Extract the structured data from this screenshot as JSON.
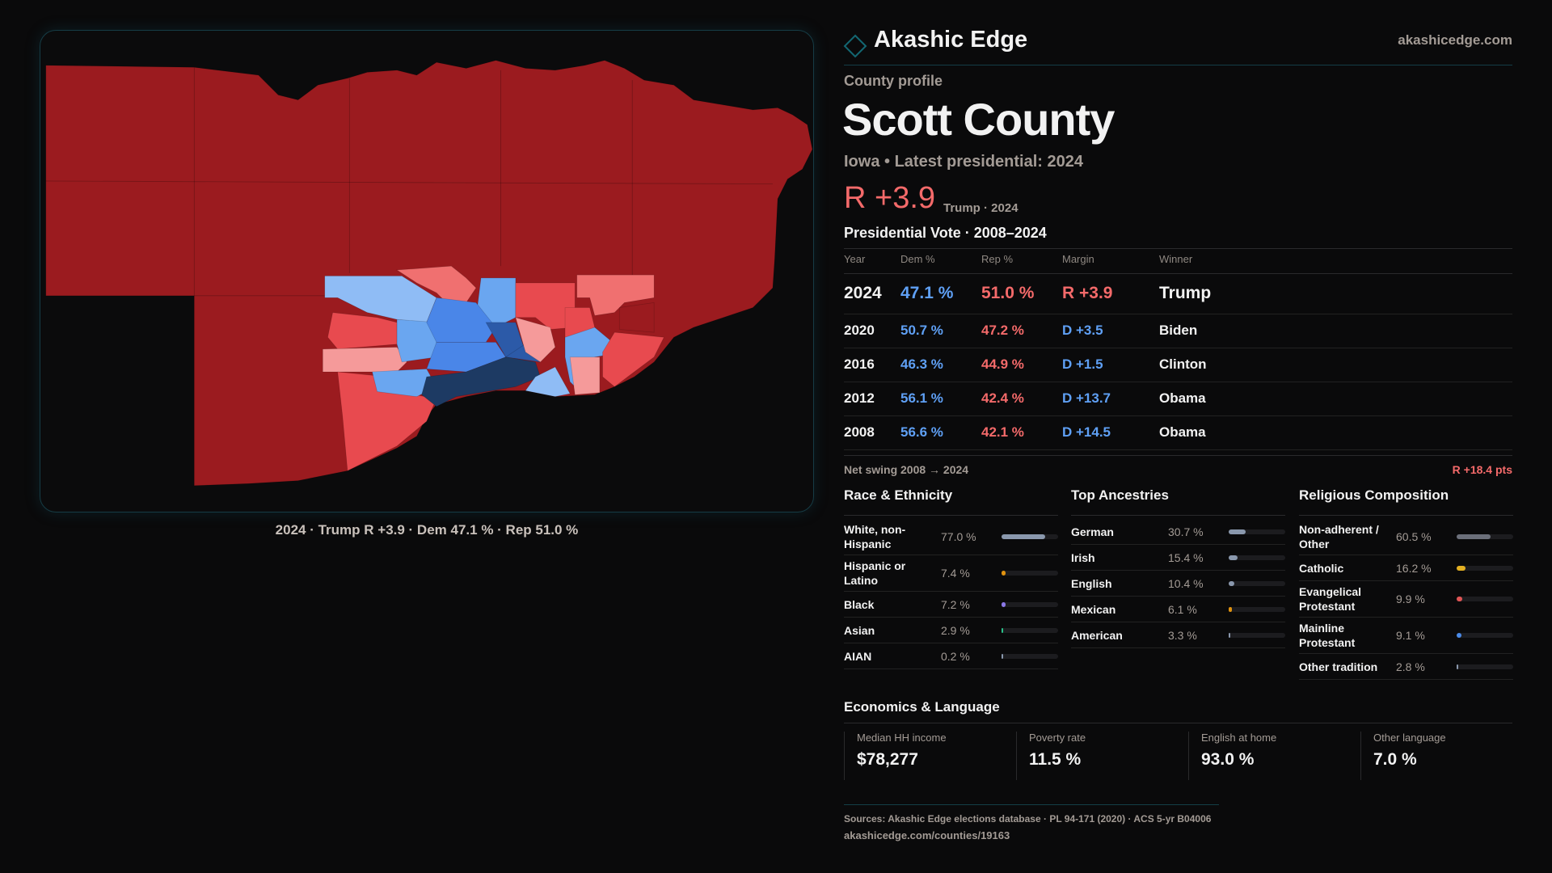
{
  "brand": {
    "name": "Akashic Edge",
    "site": "akashicedge.com",
    "logo_icon": "diamond-icon"
  },
  "profile": {
    "kicker": "County profile",
    "title": "Scott County",
    "subtitle": "Iowa • Latest presidential: 2024",
    "margin": "R +3.9",
    "margin_note": "Trump · 2024"
  },
  "vote": {
    "title": "Presidential Vote · 2008–2024",
    "headers": [
      "Year",
      "Dem %",
      "Rep %",
      "Margin",
      "Winner"
    ],
    "rows": [
      {
        "year": "2024",
        "dem": "47.1 %",
        "rep": "51.0 %",
        "margin": "R +3.9",
        "winner": "Trump",
        "party": "R"
      },
      {
        "year": "2020",
        "dem": "50.7 %",
        "rep": "47.2 %",
        "margin": "D +3.5",
        "winner": "Biden",
        "party": "D"
      },
      {
        "year": "2016",
        "dem": "46.3 %",
        "rep": "44.9 %",
        "margin": "D +1.5",
        "winner": "Clinton",
        "party": "D"
      },
      {
        "year": "2012",
        "dem": "56.1 %",
        "rep": "42.4 %",
        "margin": "D +13.7",
        "winner": "Obama",
        "party": "D"
      },
      {
        "year": "2008",
        "dem": "56.6 %",
        "rep": "42.1 %",
        "margin": "D +14.5",
        "winner": "Obama",
        "party": "D"
      }
    ],
    "swing_label": "Net swing 2008 → 2024",
    "swing_value": "R +18.4 pts"
  },
  "race": {
    "title": "Race & Ethnicity",
    "items": [
      {
        "label": "White, non-Hispanic",
        "value": "77.0 %",
        "pct": 77.0,
        "color": "#8a98ad"
      },
      {
        "label": "Hispanic or Latino",
        "value": "7.4 %",
        "pct": 7.4,
        "color": "#e0920f"
      },
      {
        "label": "Black",
        "value": "7.2 %",
        "pct": 7.2,
        "color": "#8b78e6"
      },
      {
        "label": "Asian",
        "value": "2.9 %",
        "pct": 2.9,
        "color": "#2bc28a"
      },
      {
        "label": "AIAN",
        "value": "0.2 %",
        "pct": 0.2,
        "color": "#8a98ad"
      }
    ]
  },
  "ancestry": {
    "title": "Top Ancestries",
    "items": [
      {
        "label": "German",
        "value": "30.7 %",
        "pct": 30.7,
        "color": "#8a98ad"
      },
      {
        "label": "Irish",
        "value": "15.4 %",
        "pct": 15.4,
        "color": "#8a98ad"
      },
      {
        "label": "English",
        "value": "10.4 %",
        "pct": 10.4,
        "color": "#8a98ad"
      },
      {
        "label": "Mexican",
        "value": "6.1 %",
        "pct": 6.1,
        "color": "#e0920f"
      },
      {
        "label": "American",
        "value": "3.3 %",
        "pct": 3.3,
        "color": "#8a98ad"
      }
    ]
  },
  "religion": {
    "title": "Religious Composition",
    "items": [
      {
        "label": "Non-adherent / Other",
        "value": "60.5 %",
        "pct": 60.5,
        "color": "#6b6f7a"
      },
      {
        "label": "Catholic",
        "value": "16.2 %",
        "pct": 16.2,
        "color": "#e3b022"
      },
      {
        "label": "Evangelical Protestant",
        "value": "9.9 %",
        "pct": 9.9,
        "color": "#e05555"
      },
      {
        "label": "Mainline Protestant",
        "value": "9.1 %",
        "pct": 9.1,
        "color": "#4a8ae8"
      },
      {
        "label": "Other tradition",
        "value": "2.8 %",
        "pct": 2.8,
        "color": "#8a98ad"
      }
    ]
  },
  "economics": {
    "title": "Economics & Language",
    "cards": [
      {
        "label": "Median HH income",
        "value": "$78,277"
      },
      {
        "label": "Poverty rate",
        "value": "11.5 %"
      },
      {
        "label": "English at home",
        "value": "93.0 %"
      },
      {
        "label": "Other language",
        "value": "7.0 %"
      }
    ]
  },
  "footer": {
    "sources": "Sources: Akashic Edge elections database · PL 94-171 (2020) · ACS 5-yr B04006",
    "url": "akashicedge.com/counties/19163"
  },
  "map": {
    "caption": "2024 · Trump R +3.9 · Dem 47.1 % · Rep 51.0 %",
    "colors": {
      "safe_r": "#9b1b1f",
      "lean_r": "#e84a4f",
      "tilt_r": "#f07070",
      "weak_r": "#f59a9a",
      "weak_d": "#8fbcf5",
      "tilt_d": "#6aa6f0",
      "lean_d": "#4a86e8",
      "likely_d": "#2c5aa8",
      "safe_d": "#1d3a63"
    }
  }
}
